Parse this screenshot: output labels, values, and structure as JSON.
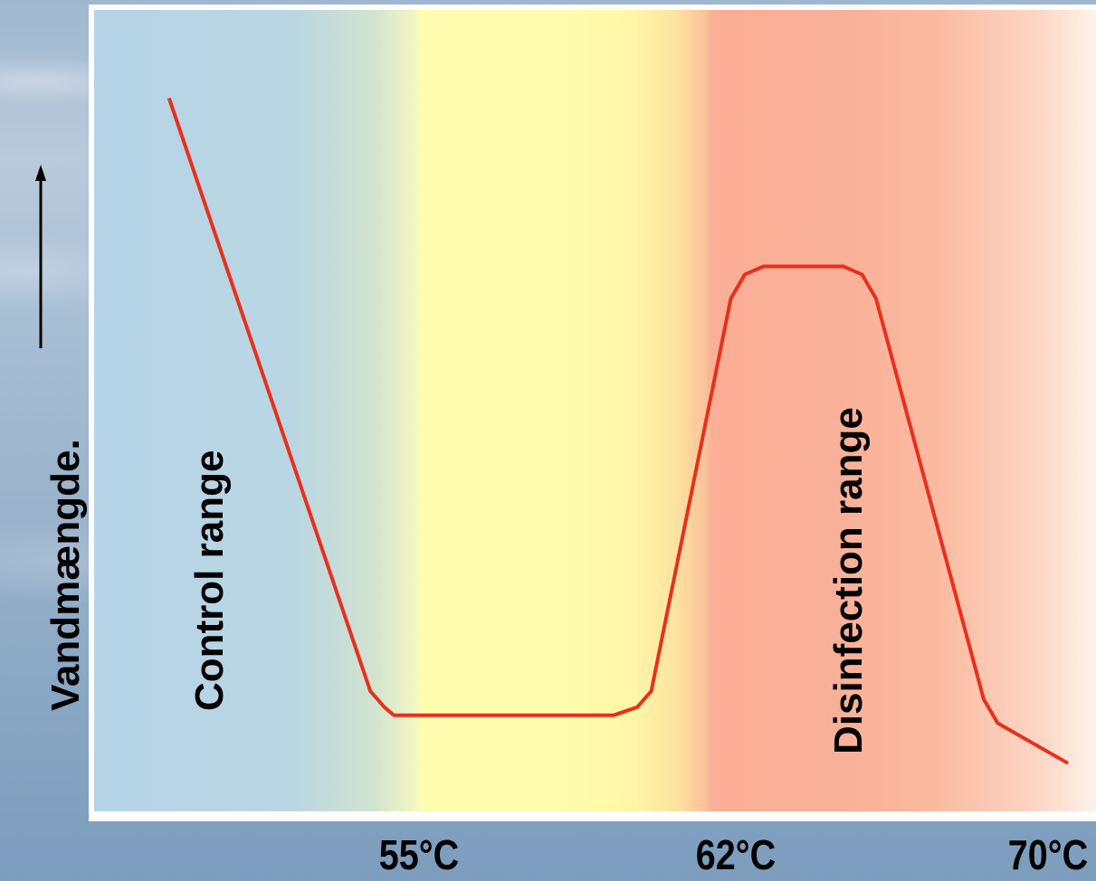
{
  "chart_data": {
    "type": "line",
    "title": "",
    "ylabel": "Vandmængde.",
    "xlabel": "",
    "x_ticks": [
      "55°C",
      "62°C",
      "70°C"
    ],
    "x_tick_values": [
      55,
      62,
      70
    ],
    "xlim": [
      48.7,
      70.1
    ],
    "ylim": [
      0,
      100
    ],
    "regions": [
      {
        "label": "Control range",
        "x_from": 48.7,
        "x_to": 55,
        "color": "#b6d4e8"
      },
      {
        "label": "",
        "x_from": 55,
        "x_to": 61.8,
        "color": "#fefeae"
      },
      {
        "label": "Disinfection range",
        "x_from": 61.8,
        "x_to": 70.1,
        "color": "#f9b098"
      }
    ],
    "series": [
      {
        "color": "#e8301c",
        "x": [
          50.3,
          54.6,
          54.9,
          55.1,
          59.8,
          60.3,
          60.6,
          62.3,
          62.6,
          63.0,
          64.7,
          65.1,
          65.4,
          67.7,
          68.0,
          69.5
        ],
        "y": [
          89,
          15,
          13,
          12,
          12,
          13,
          15,
          64,
          67,
          68,
          68,
          67,
          64,
          14,
          11,
          6
        ]
      }
    ],
    "grid": false,
    "legend": "none",
    "y_axis_arrow": true
  },
  "labels": {
    "control_range": "Control range",
    "disinfection_range": "Disinfection range"
  }
}
